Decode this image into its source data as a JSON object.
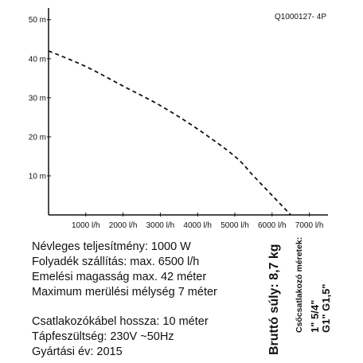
{
  "product_code": "Q1000127- 4P",
  "chart_data": {
    "type": "line",
    "x": [
      0,
      1000,
      2000,
      3000,
      4000,
      5000,
      5500,
      6000,
      6500
    ],
    "y": [
      42,
      38,
      33,
      28,
      22,
      15,
      10,
      5,
      0
    ],
    "x_ticks": [
      "1000 l/h",
      "2000 l/h",
      "3000 l/h",
      "4000 l/h",
      "5000 l/h",
      "6000 l/h",
      "7000 l/h"
    ],
    "x_tick_values": [
      1000,
      2000,
      3000,
      4000,
      5000,
      6000,
      7000
    ],
    "y_ticks": [
      "10 m",
      "20 m",
      "30 m",
      "40 m",
      "50 m"
    ],
    "y_tick_values": [
      10,
      20,
      30,
      40,
      50
    ],
    "xlim": [
      0,
      7500
    ],
    "ylim": [
      0,
      53
    ],
    "line_style": "dashed",
    "grid": false
  },
  "specs": {
    "nominal_power": "Névleges teljesítmény: 1000 W",
    "flow": "Folyadék szállítás: max. 6500 l/h",
    "lift_height": "Emelési magasság max. 42 méter",
    "immersion_depth": "Maximum merülési mélység 7 méter",
    "cable_length": "Csatlakozókábel hossza: 10 méter",
    "voltage": "Tápfeszültség: 230V ~50Hz",
    "year": "Gyártási év: 2015"
  },
  "gross_weight": "Bruttó súly: 8,7 kg",
  "fittings": {
    "title": "Csőcsatlakozó méretek:",
    "line1": "1\" 5/4\"",
    "line2": "G1\" G1,5\""
  }
}
